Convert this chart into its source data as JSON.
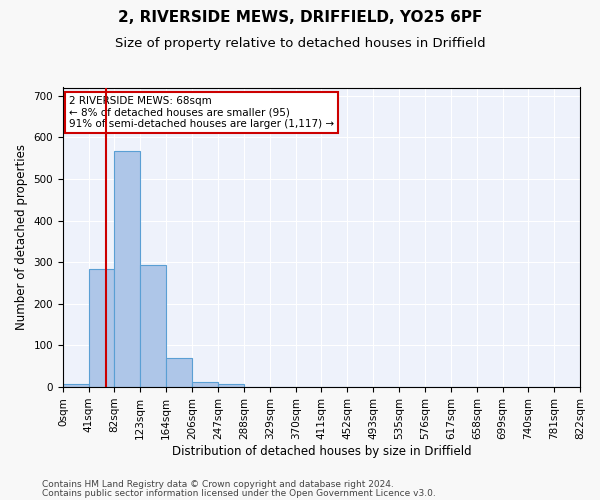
{
  "title": "2, RIVERSIDE MEWS, DRIFFIELD, YO25 6PF",
  "subtitle": "Size of property relative to detached houses in Driffield",
  "xlabel": "Distribution of detached houses by size in Driffield",
  "ylabel": "Number of detached properties",
  "footnote1": "Contains HM Land Registry data © Crown copyright and database right 2024.",
  "footnote2": "Contains public sector information licensed under the Open Government Licence v3.0.",
  "bin_edges": [
    0,
    41,
    82,
    123,
    164,
    206,
    247,
    288,
    329,
    370,
    411,
    452,
    493,
    535,
    576,
    617,
    658,
    699,
    740,
    781,
    822
  ],
  "bar_heights": [
    8,
    283,
    567,
    293,
    70,
    13,
    8,
    0,
    0,
    0,
    0,
    0,
    0,
    0,
    0,
    0,
    0,
    0,
    0,
    0
  ],
  "bar_color": "#aec6e8",
  "bar_edge_color": "#5a9fd4",
  "background_color": "#eef2fb",
  "fig_background_color": "#f8f8f8",
  "grid_color": "#ffffff",
  "property_size": 68,
  "red_line_color": "#cc0000",
  "ylim": [
    0,
    720
  ],
  "yticks": [
    0,
    100,
    200,
    300,
    400,
    500,
    600,
    700
  ],
  "annotation_text": "2 RIVERSIDE MEWS: 68sqm\n← 8% of detached houses are smaller (95)\n91% of semi-detached houses are larger (1,117) →",
  "annotation_box_color": "#ffffff",
  "annotation_box_edge_color": "#cc0000",
  "title_fontsize": 11,
  "subtitle_fontsize": 9.5,
  "axis_label_fontsize": 8.5,
  "tick_fontsize": 7.5,
  "annotation_fontsize": 7.5,
  "footnote_fontsize": 6.5
}
